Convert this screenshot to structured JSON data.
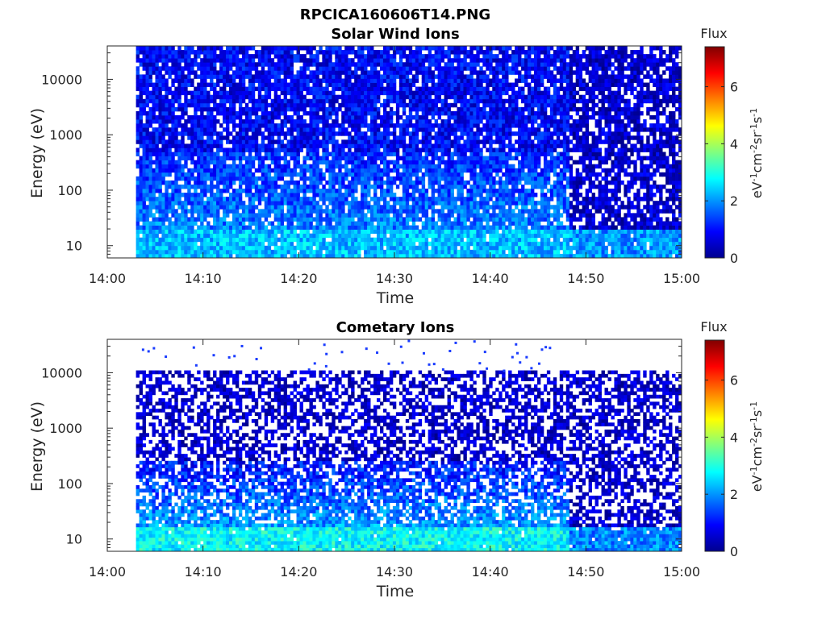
{
  "figure_title": "RPCICA160606T14.PNG",
  "chart_data": [
    {
      "type": "heatmap",
      "title": "Solar Wind Ions",
      "xlabel": "Time",
      "ylabel": "Energy (eV)",
      "x_ticks": [
        "14:00",
        "14:10",
        "14:20",
        "14:30",
        "14:40",
        "14:50",
        "15:00"
      ],
      "xlim": [
        "14:00",
        "15:00"
      ],
      "data_start": "14:03",
      "y_scale": "log",
      "y_ticks": [
        10,
        100,
        1000,
        10000
      ],
      "ylim": [
        6,
        40000
      ],
      "colorbar": {
        "label": "Flux",
        "units": "eV-1cm-2sr-1s-1",
        "range": [
          0,
          7.4
        ],
        "ticks": [
          0,
          2,
          4,
          6
        ],
        "colormap": "jet"
      },
      "description_levels": {
        "low_energy_flux": 2.3,
        "mid_energy_flux": 1.2,
        "high_energy_flux": 0.9,
        "after_14_48_flux_drop": 0.5
      }
    },
    {
      "type": "heatmap",
      "title": "Cometary Ions",
      "xlabel": "Time",
      "ylabel": "Energy (eV)",
      "x_ticks": [
        "14:00",
        "14:10",
        "14:20",
        "14:30",
        "14:40",
        "14:50",
        "15:00"
      ],
      "xlim": [
        "14:00",
        "15:00"
      ],
      "data_start": "14:03",
      "y_scale": "log",
      "y_ticks": [
        10,
        100,
        1000,
        10000
      ],
      "ylim": [
        6,
        40000
      ],
      "colorbar": {
        "label": "Flux",
        "units": "eV-1cm-2sr-1s-1",
        "range": [
          0,
          7.4
        ],
        "ticks": [
          0,
          2,
          4,
          6
        ],
        "colormap": "jet"
      },
      "description_levels": {
        "low_energy_flux": 2.8,
        "mid_energy_flux": 1.0,
        "high_energy_flux": 0.4,
        "energy_cutoff": 11000,
        "after_14_48_flux_drop": 0.4
      }
    }
  ]
}
